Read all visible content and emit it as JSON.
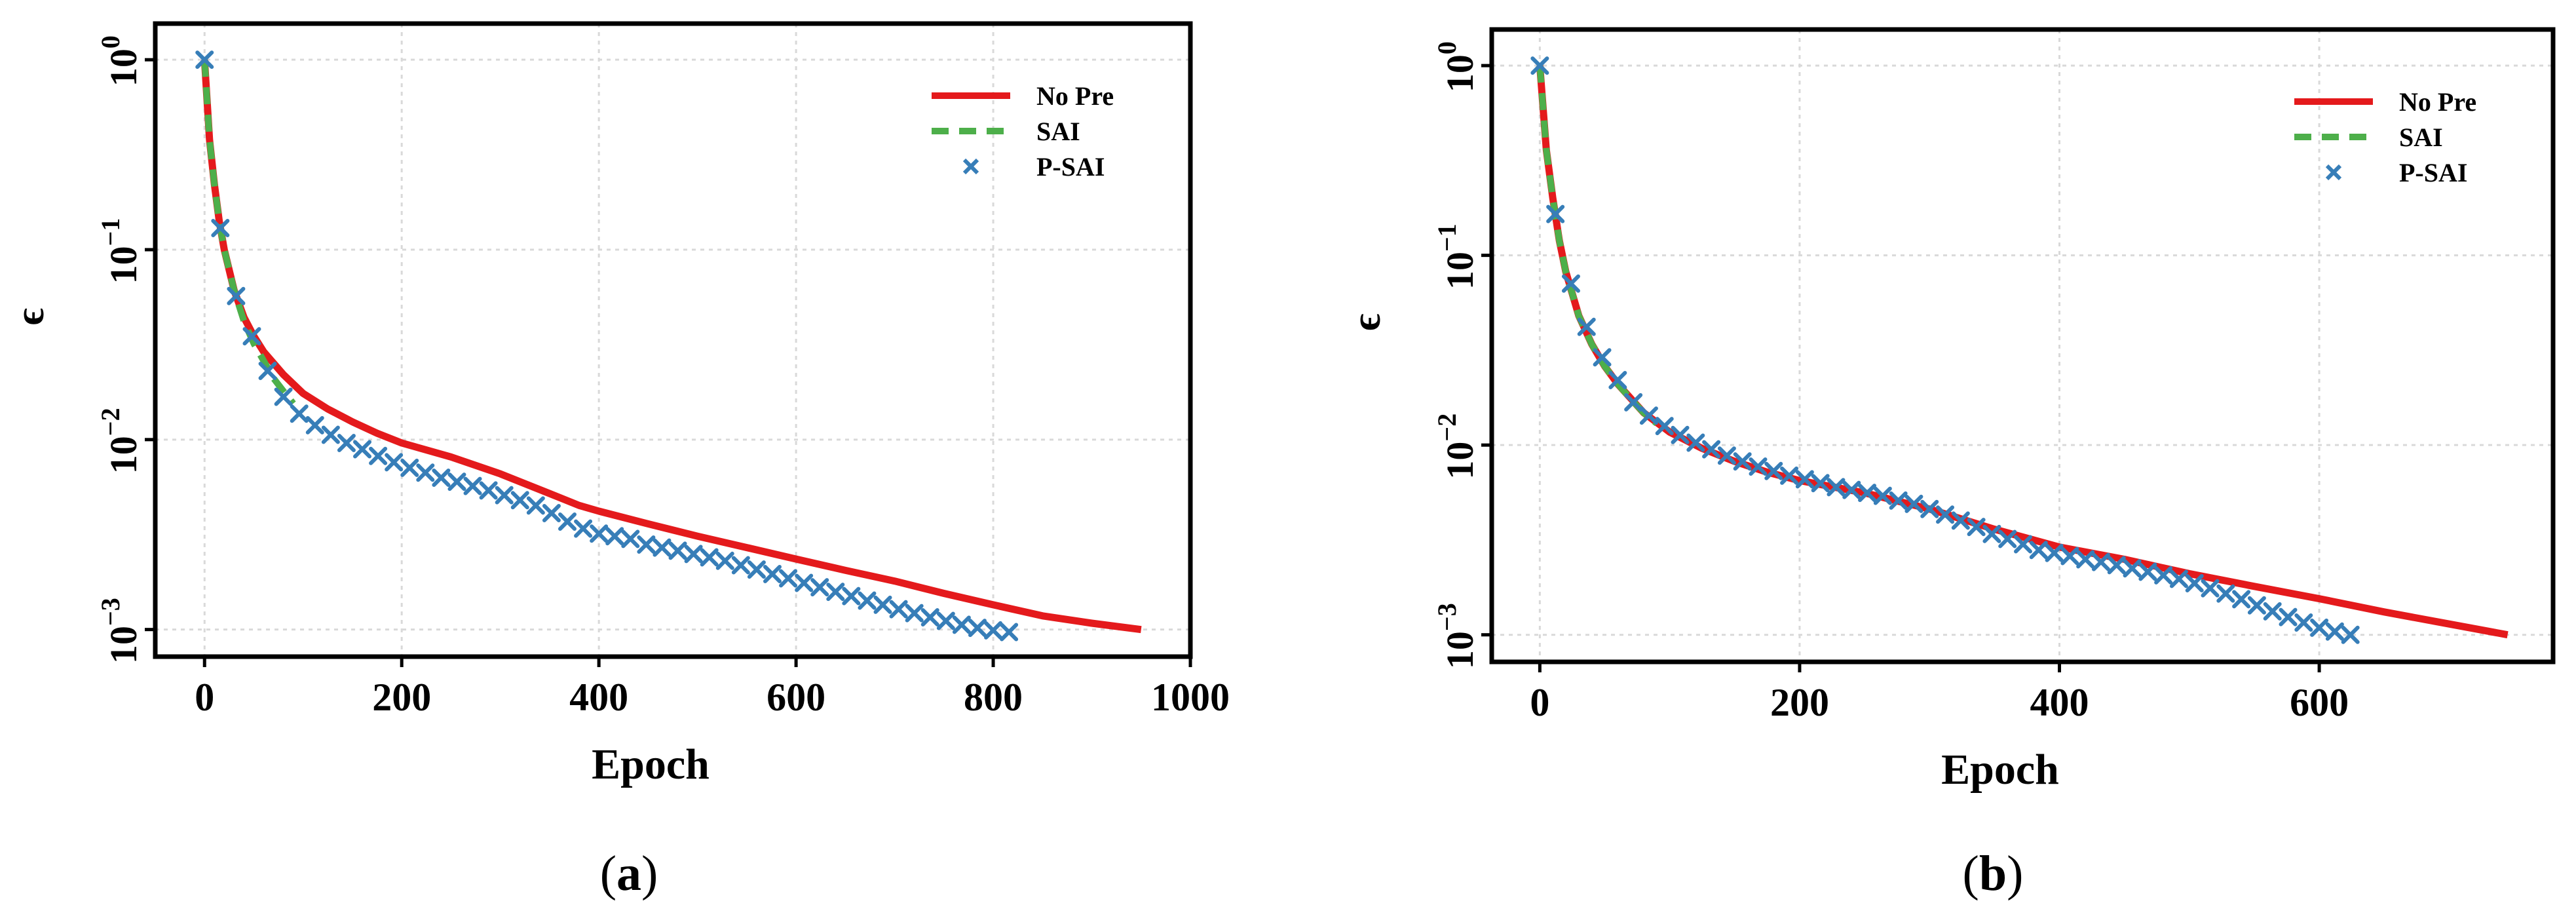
{
  "figure": {
    "captions": [
      {
        "open": "(",
        "letter": "a",
        "close": ")"
      },
      {
        "open": "(",
        "letter": "b",
        "close": ")"
      }
    ]
  },
  "colors": {
    "no_pre": "#e41a1c",
    "sai": "#4daf4a",
    "p_sai": "#377eb8",
    "grid": "#d9d9d9",
    "axes": "#000000"
  },
  "chart_data": [
    {
      "type": "line",
      "panel": "a",
      "title": "",
      "xlabel": "Epoch",
      "ylabel": "ϵ",
      "yscale": "log",
      "xlim": [
        -50,
        1000
      ],
      "ylim": [
        0.00072,
        1.55
      ],
      "xticks": [
        0,
        200,
        400,
        600,
        800,
        1000
      ],
      "yticks": [
        {
          "value": 1,
          "base": "10",
          "exp": "0"
        },
        {
          "value": 0.1,
          "base": "10",
          "exp": "−1"
        },
        {
          "value": 0.01,
          "base": "10",
          "exp": "−2"
        },
        {
          "value": 0.001,
          "base": "10",
          "exp": "−3"
        }
      ],
      "grid": true,
      "legend_position": "top-right",
      "series": [
        {
          "name": "No Pre",
          "style": "solid",
          "color_key": "no_pre",
          "x": [
            0,
            5,
            10,
            15,
            20,
            30,
            40,
            50,
            60,
            80,
            100,
            125,
            150,
            175,
            200,
            250,
            300,
            350,
            380,
            400,
            450,
            500,
            550,
            600,
            650,
            700,
            750,
            800,
            850,
            900,
            950
          ],
          "y": [
            1.0,
            0.38,
            0.22,
            0.14,
            0.1,
            0.061,
            0.044,
            0.035,
            0.029,
            0.022,
            0.0175,
            0.0145,
            0.0124,
            0.0108,
            0.0096,
            0.0081,
            0.0066,
            0.0052,
            0.0045,
            0.0042,
            0.0036,
            0.0031,
            0.0027,
            0.00235,
            0.00205,
            0.0018,
            0.00155,
            0.00135,
            0.00118,
            0.00108,
            0.001
          ]
        },
        {
          "name": "SAI",
          "style": "dashed",
          "color_key": "sai",
          "x": [
            0,
            5,
            10,
            15,
            20,
            30,
            40,
            50,
            60,
            70,
            80,
            90
          ],
          "y": [
            1.0,
            0.38,
            0.22,
            0.14,
            0.1,
            0.061,
            0.042,
            0.032,
            0.026,
            0.021,
            0.018,
            0.0155
          ]
        },
        {
          "name": "P-SAI",
          "style": "markers",
          "marker": "x",
          "color_key": "p_sai",
          "x": [
            0,
            16,
            32,
            48,
            64,
            80,
            96,
            112,
            128,
            144,
            160,
            176,
            192,
            208,
            224,
            240,
            256,
            272,
            288,
            304,
            320,
            336,
            352,
            368,
            384,
            400,
            416,
            432,
            448,
            464,
            480,
            496,
            512,
            528,
            544,
            560,
            576,
            592,
            608,
            624,
            640,
            656,
            672,
            688,
            704,
            720,
            736,
            752,
            768,
            784,
            800,
            816
          ],
          "y": [
            1.0,
            0.13,
            0.057,
            0.035,
            0.023,
            0.0168,
            0.0137,
            0.0119,
            0.0106,
            0.0096,
            0.0089,
            0.0082,
            0.0076,
            0.0071,
            0.0067,
            0.0063,
            0.006,
            0.0057,
            0.0054,
            0.0051,
            0.0048,
            0.0045,
            0.0041,
            0.0037,
            0.0034,
            0.0032,
            0.0031,
            0.003,
            0.0028,
            0.0027,
            0.0026,
            0.0025,
            0.0024,
            0.0023,
            0.00218,
            0.00207,
            0.00196,
            0.00186,
            0.00176,
            0.00167,
            0.00158,
            0.0015,
            0.00142,
            0.00135,
            0.00128,
            0.00122,
            0.00116,
            0.00111,
            0.00106,
            0.00102,
            0.00099,
            0.00097
          ]
        }
      ],
      "legend": [
        "No Pre",
        "SAI",
        "P-SAI"
      ]
    },
    {
      "type": "line",
      "panel": "b",
      "title": "",
      "xlabel": "Epoch",
      "ylabel": "ϵ",
      "yscale": "log",
      "xlim": [
        -37,
        780
      ],
      "ylim": [
        0.00072,
        1.55
      ],
      "xticks": [
        0,
        200,
        400,
        600
      ],
      "yticks": [
        {
          "value": 1,
          "base": "10",
          "exp": "0"
        },
        {
          "value": 0.1,
          "base": "10",
          "exp": "−1"
        },
        {
          "value": 0.01,
          "base": "10",
          "exp": "−2"
        },
        {
          "value": 0.001,
          "base": "10",
          "exp": "−3"
        }
      ],
      "grid": true,
      "legend_position": "top-right",
      "series": [
        {
          "name": "No Pre",
          "style": "solid",
          "color_key": "no_pre",
          "x": [
            0,
            5,
            10,
            15,
            20,
            30,
            40,
            50,
            60,
            80,
            100,
            125,
            150,
            175,
            200,
            250,
            300,
            350,
            400,
            450,
            500,
            550,
            600,
            650,
            700,
            745
          ],
          "y": [
            1.0,
            0.36,
            0.2,
            0.12,
            0.082,
            0.048,
            0.034,
            0.026,
            0.021,
            0.0148,
            0.0117,
            0.0096,
            0.0082,
            0.0072,
            0.0065,
            0.0056,
            0.0046,
            0.0036,
            0.0029,
            0.0025,
            0.0021,
            0.0018,
            0.00155,
            0.00132,
            0.00114,
            0.001
          ]
        },
        {
          "name": "SAI",
          "style": "dashed",
          "color_key": "sai",
          "x": [
            0,
            5,
            10,
            15,
            20,
            30,
            40,
            50,
            60,
            70,
            80,
            90
          ],
          "y": [
            1.0,
            0.36,
            0.2,
            0.12,
            0.082,
            0.048,
            0.034,
            0.026,
            0.021,
            0.0175,
            0.0148,
            0.013
          ]
        },
        {
          "name": "P-SAI",
          "style": "markers",
          "marker": "x",
          "color_key": "p_sai",
          "x": [
            0,
            12,
            24,
            36,
            48,
            60,
            72,
            84,
            96,
            108,
            120,
            132,
            144,
            156,
            168,
            180,
            192,
            204,
            216,
            228,
            240,
            252,
            264,
            276,
            288,
            300,
            312,
            324,
            336,
            348,
            360,
            372,
            384,
            396,
            408,
            420,
            432,
            444,
            456,
            468,
            480,
            492,
            504,
            516,
            528,
            540,
            552,
            564,
            576,
            588,
            600,
            612,
            624
          ],
          "y": [
            1.0,
            0.165,
            0.071,
            0.042,
            0.029,
            0.022,
            0.0168,
            0.0143,
            0.0126,
            0.0113,
            0.0103,
            0.0095,
            0.0088,
            0.0082,
            0.0077,
            0.0073,
            0.0069,
            0.0066,
            0.0063,
            0.006,
            0.0058,
            0.0056,
            0.0054,
            0.0051,
            0.0049,
            0.0046,
            0.0043,
            0.004,
            0.0037,
            0.0034,
            0.0032,
            0.003,
            0.0028,
            0.0027,
            0.0026,
            0.0025,
            0.00242,
            0.00233,
            0.00224,
            0.00215,
            0.00206,
            0.00197,
            0.00187,
            0.00176,
            0.00165,
            0.00154,
            0.00143,
            0.00133,
            0.00124,
            0.00116,
            0.00109,
            0.00104,
            0.001
          ]
        }
      ],
      "legend": [
        "No Pre",
        "SAI",
        "P-SAI"
      ]
    }
  ]
}
